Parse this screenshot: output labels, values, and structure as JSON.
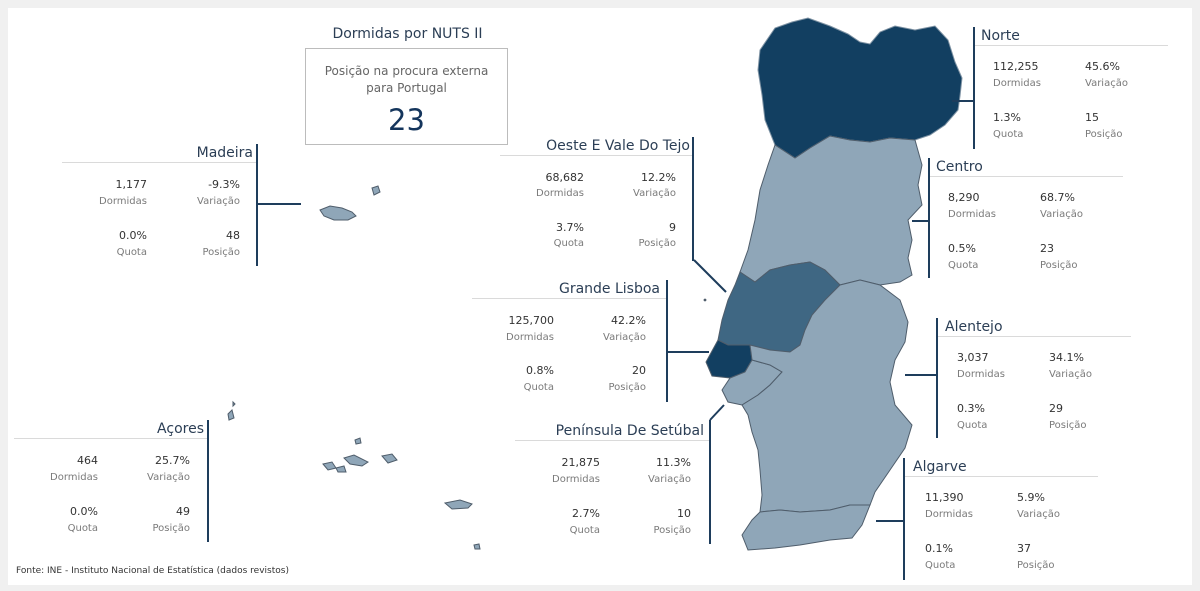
{
  "kpi": {
    "title": "Dormidas por NUTS II",
    "label_line1": "Posição na procura externa",
    "label_line2": "para Portugal",
    "value": "23"
  },
  "labels": {
    "dormidas": "Dormidas",
    "variacao": "Variação",
    "quota": "Quota",
    "posicao": "Posição"
  },
  "regions": {
    "norte": {
      "name": "Norte",
      "dormidas": "112,255",
      "variacao": "45.6%",
      "quota": "1.3%",
      "posicao": "15",
      "color": "#123f61"
    },
    "centro": {
      "name": "Centro",
      "dormidas": "8,290",
      "variacao": "68.7%",
      "quota": "0.5%",
      "posicao": "23",
      "color": "#8fa6b8"
    },
    "oeste": {
      "name": "Oeste E Vale Do Tejo",
      "dormidas": "68,682",
      "variacao": "12.2%",
      "quota": "3.7%",
      "posicao": "9",
      "color": "#3f6783"
    },
    "lisboa": {
      "name": "Grande Lisboa",
      "dormidas": "125,700",
      "variacao": "42.2%",
      "quota": "0.8%",
      "posicao": "20",
      "color": "#123f61"
    },
    "setubal": {
      "name": "Península De Setúbal",
      "dormidas": "21,875",
      "variacao": "11.3%",
      "quota": "2.7%",
      "posicao": "10",
      "color": "#8fa6b8"
    },
    "alentejo": {
      "name": "Alentejo",
      "dormidas": "3,037",
      "variacao": "34.1%",
      "quota": "0.3%",
      "posicao": "29",
      "color": "#8fa6b8"
    },
    "algarve": {
      "name": "Algarve",
      "dormidas": "11,390",
      "variacao": "5.9%",
      "quota": "0.1%",
      "posicao": "37",
      "color": "#8fa6b8"
    },
    "madeira": {
      "name": "Madeira",
      "dormidas": "1,177",
      "variacao": "-9.3%",
      "quota": "0.0%",
      "posicao": "48",
      "color": "#8fa6b8"
    },
    "acores": {
      "name": "Açores",
      "dormidas": "464",
      "variacao": "25.7%",
      "quota": "0.0%",
      "posicao": "49",
      "color": "#8fa6b8"
    }
  },
  "source": "Fonte: INE - Instituto Nacional de Estatística (dados revistos)"
}
